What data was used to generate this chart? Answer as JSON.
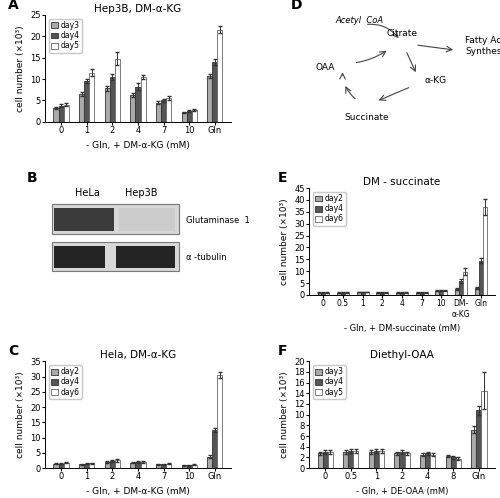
{
  "panel_A": {
    "title": "Hep3B, DM-α-KG",
    "xlabel": "- Gln, + DM-α-KG (mM)",
    "ylabel": "cell number (×10³)",
    "categories": [
      "0",
      "1",
      "2",
      "4",
      "7",
      "10",
      "Gln"
    ],
    "day3": [
      3.2,
      6.5,
      7.8,
      6.2,
      4.5,
      2.2,
      10.8
    ],
    "day4": [
      3.8,
      9.5,
      10.5,
      8.2,
      5.0,
      2.5,
      14.0
    ],
    "day5": [
      4.0,
      11.5,
      14.8,
      10.5,
      5.5,
      2.8,
      21.5
    ],
    "day3_err": [
      0.3,
      0.5,
      0.5,
      0.5,
      0.3,
      0.2,
      0.5
    ],
    "day4_err": [
      0.3,
      0.5,
      0.8,
      0.8,
      0.4,
      0.2,
      0.6
    ],
    "day5_err": [
      0.3,
      0.8,
      1.5,
      0.5,
      0.5,
      0.3,
      0.8
    ],
    "ylim": [
      0,
      25
    ],
    "yticks": [
      0,
      5,
      10,
      15,
      20,
      25
    ],
    "legend": [
      "day3",
      "day4",
      "day5"
    ],
    "colors": [
      "#aaaaaa",
      "#555555",
      "#ffffff"
    ]
  },
  "panel_C": {
    "title": "Hela, DM-α-KG",
    "xlabel": "- Gln, + DM-α-KG (mM)",
    "ylabel": "cell number (×10³)",
    "categories": [
      "0",
      "1",
      "2",
      "4",
      "7",
      "10",
      "Gln"
    ],
    "day2": [
      1.5,
      1.3,
      2.0,
      1.8,
      1.2,
      0.9,
      3.8
    ],
    "day4": [
      1.5,
      1.4,
      2.2,
      1.9,
      1.3,
      1.0,
      12.5
    ],
    "day6": [
      1.8,
      1.6,
      2.5,
      2.1,
      1.5,
      1.1,
      30.5
    ],
    "day2_err": [
      0.2,
      0.2,
      0.3,
      0.2,
      0.2,
      0.15,
      0.4
    ],
    "day4_err": [
      0.2,
      0.2,
      0.3,
      0.3,
      0.2,
      0.15,
      0.8
    ],
    "day6_err": [
      0.2,
      0.2,
      0.4,
      0.3,
      0.2,
      0.15,
      1.0
    ],
    "ylim": [
      0,
      35
    ],
    "yticks": [
      0,
      5,
      10,
      15,
      20,
      25,
      30,
      35
    ],
    "legend": [
      "day2",
      "day4",
      "day6"
    ],
    "colors": [
      "#aaaaaa",
      "#555555",
      "#ffffff"
    ]
  },
  "panel_E": {
    "title": "DM - succinate",
    "xlabel": "- Gln, + DM-succinate (mM)",
    "ylabel": "cell number (×10³)",
    "categories": [
      "0",
      "0.5",
      "1",
      "2",
      "4",
      "7",
      "10",
      "DM-\nα-KG",
      "Gln"
    ],
    "day2": [
      1.0,
      1.0,
      1.2,
      1.0,
      1.0,
      1.0,
      1.8,
      2.5,
      3.0
    ],
    "day4": [
      1.0,
      1.0,
      1.2,
      1.0,
      1.0,
      1.0,
      1.8,
      6.0,
      14.5
    ],
    "day6": [
      1.0,
      1.0,
      1.2,
      1.0,
      1.0,
      1.0,
      1.8,
      9.8,
      37.0
    ],
    "day2_err": [
      0.1,
      0.1,
      0.1,
      0.1,
      0.1,
      0.1,
      0.2,
      0.5,
      0.3
    ],
    "day4_err": [
      0.1,
      0.1,
      0.1,
      0.1,
      0.1,
      0.1,
      0.2,
      0.8,
      1.0
    ],
    "day6_err": [
      0.1,
      0.1,
      0.1,
      0.1,
      0.1,
      0.1,
      0.2,
      1.5,
      3.5
    ],
    "ylim": [
      0,
      45
    ],
    "yticks": [
      0,
      5,
      10,
      15,
      20,
      25,
      30,
      35,
      40,
      45
    ],
    "legend": [
      "day2",
      "day4",
      "day6"
    ],
    "colors": [
      "#aaaaaa",
      "#555555",
      "#ffffff"
    ]
  },
  "panel_F": {
    "title": "Diethyl-OAA",
    "xlabel": "- Gln, + DE-OAA (mM)",
    "ylabel": "cell number (×10³)",
    "categories": [
      "0",
      "0.5",
      "1",
      "2",
      "4",
      "8",
      "Gln"
    ],
    "day3": [
      2.8,
      3.0,
      3.0,
      2.8,
      2.5,
      2.2,
      7.2
    ],
    "day4": [
      3.0,
      3.2,
      3.2,
      3.0,
      2.8,
      2.0,
      10.8
    ],
    "day5": [
      3.0,
      3.2,
      3.2,
      2.8,
      2.5,
      1.8,
      14.5
    ],
    "day3_err": [
      0.3,
      0.3,
      0.3,
      0.3,
      0.3,
      0.2,
      0.6
    ],
    "day4_err": [
      0.3,
      0.3,
      0.3,
      0.3,
      0.3,
      0.2,
      0.8
    ],
    "day5_err": [
      0.3,
      0.3,
      0.3,
      0.3,
      0.3,
      0.2,
      3.5
    ],
    "ylim": [
      0,
      20
    ],
    "yticks": [
      0,
      2,
      4,
      6,
      8,
      10,
      12,
      14,
      16,
      18,
      20
    ],
    "legend": [
      "day3",
      "day4",
      "day5"
    ],
    "colors": [
      "#aaaaaa",
      "#555555",
      "#ffffff"
    ]
  },
  "background_color": "#ffffff",
  "label_fontsize": 6.5,
  "tick_fontsize": 6,
  "title_fontsize": 7.5
}
